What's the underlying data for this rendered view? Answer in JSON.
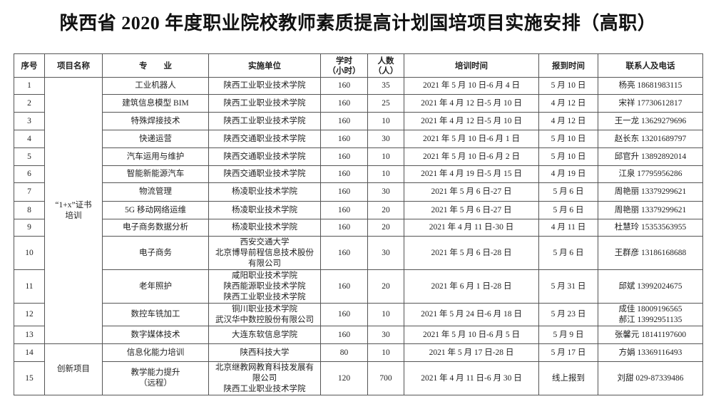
{
  "title": "陕西省 2020 年度职业院校教师素质提高计划国培项目实施安排（高职）",
  "headers": [
    "序号",
    "项目名称",
    "专　　业",
    "实施单位",
    "学时\n（小时）",
    "人数\n（人）",
    "培训时间",
    "报到时间",
    "联系人及电话"
  ],
  "groups": [
    {
      "name": "“1+x”证书\n培训",
      "rows": 13
    },
    {
      "name": "创新项目",
      "rows": 2
    }
  ],
  "rows": [
    {
      "no": "1",
      "major": "工业机器人",
      "unit": "陕西工业职业技术学院",
      "hours": "160",
      "people": "35",
      "period": "2021 年 5 月 10 日-6 月 4 日",
      "report": "5 月 10 日",
      "contact": "杨亮 18681983115"
    },
    {
      "no": "2",
      "major": "建筑信息模型 BIM",
      "unit": "陕西工业职业技术学院",
      "hours": "160",
      "people": "25",
      "period": "2021 年 4 月 12 日-5 月 10 日",
      "report": "4 月 12 日",
      "contact": "宋祥 17730612817"
    },
    {
      "no": "3",
      "major": "特殊焊接技术",
      "unit": "陕西工业职业技术学院",
      "hours": "160",
      "people": "10",
      "period": "2021 年 4 月 12 日-5 月 10 日",
      "report": "4 月 12 日",
      "contact": "王一龙 13629279696"
    },
    {
      "no": "4",
      "major": "快递运营",
      "unit": "陕西交通职业技术学院",
      "hours": "160",
      "people": "30",
      "period": "2021 年 5 月 10 日-6 月 1 日",
      "report": "5 月 10 日",
      "contact": "赵长东 13201689797"
    },
    {
      "no": "5",
      "major": "汽车运用与维护",
      "unit": "陕西交通职业技术学院",
      "hours": "160",
      "people": "10",
      "period": "2021 年 5 月 10 日-6 月 2 日",
      "report": "5 月 10 日",
      "contact": "邱官升 13892892014"
    },
    {
      "no": "6",
      "major": "智能新能源汽车",
      "unit": "陕西交通职业技术学院",
      "hours": "160",
      "people": "10",
      "period": "2021 年 4 月 19 日-5 月 15 日",
      "report": "4 月 19 日",
      "contact": "江泉 17795956286"
    },
    {
      "no": "7",
      "major": "物流管理",
      "unit": "杨凌职业技术学院",
      "hours": "160",
      "people": "30",
      "period": "2021 年 5 月 6 日-27 日",
      "report": "5 月 6 日",
      "contact": "周艳丽 13379299621"
    },
    {
      "no": "8",
      "major": "5G 移动网络运维",
      "unit": "杨凌职业技术学院",
      "hours": "160",
      "people": "20",
      "period": "2021 年 5 月 6 日-27 日",
      "report": "5 月 6 日",
      "contact": "周艳丽 13379299621"
    },
    {
      "no": "9",
      "major": "电子商务数据分析",
      "unit": "杨凌职业技术学院",
      "hours": "160",
      "people": "20",
      "period": "2021 年 4 月 11 日-30 日",
      "report": "4 月 11 日",
      "contact": "杜慧玲 15353563955"
    },
    {
      "no": "10",
      "major": "电子商务",
      "unit": "西安交通大学\n北京博导前程信息技术股份\n有限公司",
      "hours": "160",
      "people": "30",
      "period": "2021 年 5 月 6 日-28 日",
      "report": "5 月 6 日",
      "contact": "王群彦 13186168688"
    },
    {
      "no": "11",
      "major": "老年照护",
      "unit": "咸阳职业技术学院\n陕西能源职业技术学院\n陕西工业职业技术学院",
      "hours": "160",
      "people": "20",
      "period": "2021 年 6 月 1 日-28 日",
      "report": "5 月 31 日",
      "contact": "邱斌 13992024675"
    },
    {
      "no": "12",
      "major": "数控车铣加工",
      "unit": "铜川职业技术学院\n武汉华中数控股份有限公司",
      "hours": "160",
      "people": "10",
      "period": "2021 年 5 月 24 日-6 月 18 日",
      "report": "5 月 23 日",
      "contact": "成佳 18009196565\n郝江  13992951135"
    },
    {
      "no": "13",
      "major": "数字媒体技术",
      "unit": "大连东软信息学院",
      "hours": "160",
      "people": "30",
      "period": "2021 年 5 月 10 日-6 月 5 日",
      "report": "5 月 9 日",
      "contact": "张馨元 18141197600"
    },
    {
      "no": "14",
      "major": "信息化能力培训",
      "unit": "陕西科技大学",
      "hours": "80",
      "people": "10",
      "period": "2021 年 5 月 17 日-28 日",
      "report": "5 月 17 日",
      "contact": "方娟 13369116493"
    },
    {
      "no": "15",
      "major": "教学能力提升\n（远程）",
      "unit": "北京继教网教育科技发展有\n限公司\n陕西工业职业技术学院",
      "hours": "120",
      "people": "700",
      "period": "2021 年 4 月 11 日-6 月 30 日",
      "report": "线上报到",
      "contact": "刘甜 029-87339486"
    }
  ]
}
